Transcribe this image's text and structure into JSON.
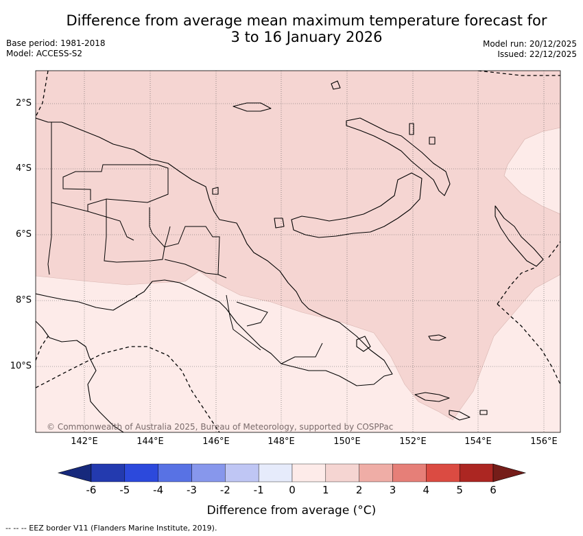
{
  "title_line1": "Difference from average mean maximum temperature forecast for",
  "title_line2": "3 to 16 January 2026",
  "base_period": "Base period: 1981-2018",
  "model": "Model: ACCESS-S2",
  "model_run": "Model run: 20/12/2025",
  "issued": "Issued: 22/12/2025",
  "copyright": "© Commonwealth of Australia 2025, Bureau of Meteorology, supported by COSPPac",
  "lon_labels": [
    "142°E",
    "144°E",
    "146°E",
    "148°E",
    "150°E",
    "152°E",
    "154°E",
    "156°E"
  ],
  "lat_labels": [
    "2°S",
    "4°S",
    "6°S",
    "8°S",
    "10°S"
  ],
  "colorbar": {
    "ticks": [
      "-6",
      "-5",
      "-4",
      "-3",
      "-2",
      "-1",
      "0",
      "1",
      "2",
      "3",
      "4",
      "5",
      "6"
    ],
    "colors": [
      "#233aaf",
      "#2c49dc",
      "#5872e4",
      "#8797ec",
      "#bfc6f4",
      "#e6ebfb",
      "#fdebe9",
      "#f5d5d2",
      "#efada6",
      "#e67f78",
      "#db4b42",
      "#ac2622"
    ],
    "low_ext_color": "#17297c",
    "high_ext_color": "#751d19",
    "label": "Difference from average (°C)"
  },
  "legend_footer": "--  --  -- EEZ border V11 (Flanders Marine Institute, 2019).",
  "map_colors": {
    "above_1_2": "#f5d5d2",
    "above_0_1": "#fdebe9"
  }
}
